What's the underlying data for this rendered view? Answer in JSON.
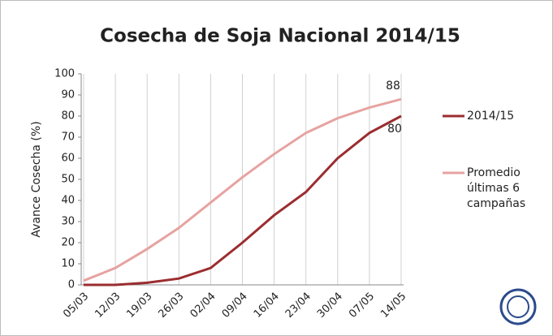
{
  "chart_data": {
    "type": "line",
    "title": "Cosecha de Soja Nacional 2014/15",
    "y_label": "Avance Cosecha (%)",
    "categories": [
      "05/03",
      "12/03",
      "19/03",
      "26/03",
      "02/04",
      "09/04",
      "16/04",
      "23/04",
      "30/04",
      "07/05",
      "14/05"
    ],
    "series": [
      {
        "name": "2014/15",
        "color": "#9b2d30",
        "values": [
          0,
          0,
          1,
          3,
          8,
          20,
          33,
          44,
          60,
          72,
          80
        ]
      },
      {
        "name": "Promedio últimas 6 campañas",
        "color": "#e6a3a1",
        "values": [
          2,
          8,
          17,
          27,
          39,
          51,
          62,
          72,
          79,
          84,
          88
        ]
      }
    ],
    "ylim": [
      0,
      100
    ],
    "yticks": [
      0,
      10,
      20,
      30,
      40,
      50,
      60,
      70,
      80,
      90,
      100
    ],
    "grid": true,
    "legend": "right"
  }
}
